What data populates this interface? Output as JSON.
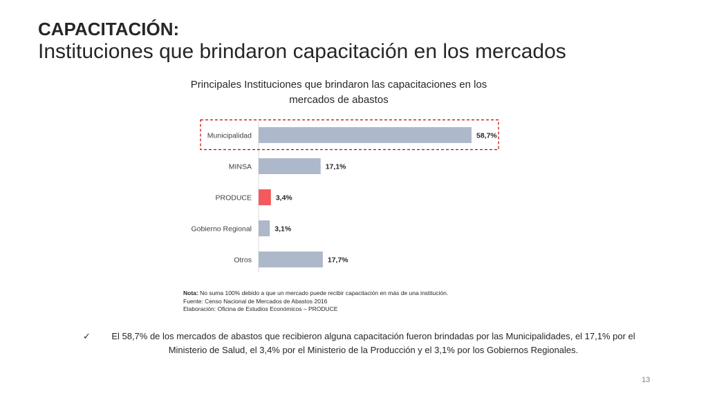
{
  "slide": {
    "heading_line1": "CAPACITACIÓN:",
    "heading_line2": "Instituciones que brindaron capacitación en los mercados",
    "note_label": "Nota:",
    "note_text": " No suma 100% debido a que un mercado puede recibir capacitación en más de una institución.",
    "source": "Fuente: Censo Nacional de Mercados de Abastos 2016",
    "elaboration": "Elaboración: Oficina de Estudios Económicos – PRODUCE",
    "summary_icon": "check-icon",
    "summary": "El 58,7% de los mercados de abastos que recibieron alguna capacitación fueron brindadas por las Municipalidades, el 17,1% por el Ministerio de Salud, el 3,4% por el Ministerio de la Producción y el 3,1% por los Gobiernos Regionales.",
    "page_number": "13"
  },
  "chart_data": {
    "type": "bar",
    "orientation": "horizontal",
    "title": "Principales Instituciones que brindaron las capacitaciones en los mercados de abastos",
    "categories": [
      "Municipalidad",
      "MINSA",
      "PRODUCE",
      "Gobierno Regional",
      "Otros"
    ],
    "values": [
      58.7,
      17.1,
      3.4,
      3.1,
      17.7
    ],
    "labels": [
      "58,7%",
      "17,1%",
      "3,4%",
      "3,1%",
      "17,7%"
    ],
    "unit": "%",
    "xlim": [
      0,
      60
    ],
    "colors": [
      "#adb9ca",
      "#adb9ca",
      "#f4595b",
      "#adb9ca",
      "#adb9ca"
    ],
    "highlight_category": "Municipalidad",
    "highlight_color": "#c00000",
    "grid": false,
    "legend": "none"
  }
}
